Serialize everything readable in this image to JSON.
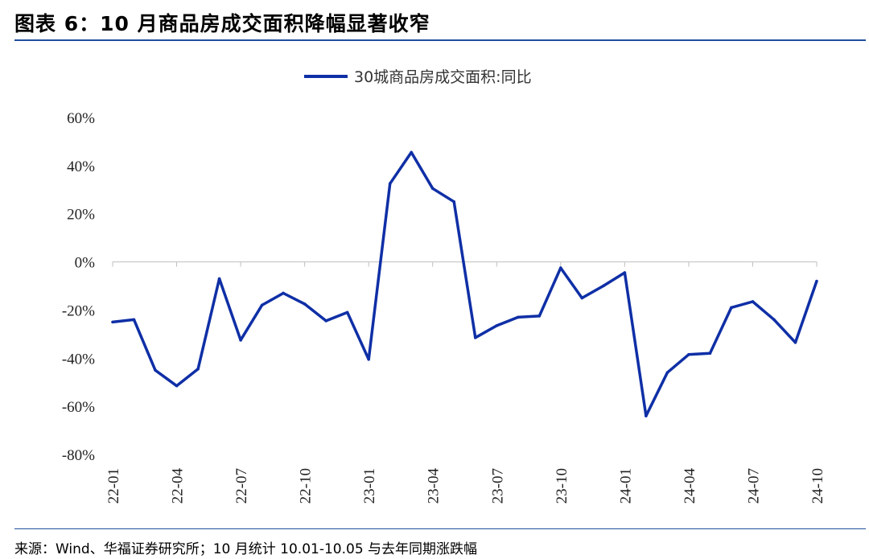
{
  "header": {
    "title": "图表 6：10 月商品房成交面积降幅显著收窄"
  },
  "footer": {
    "source": "来源：Wind、华福证券研究所；10 月统计 10.01-10.05 与去年同期涨跌幅"
  },
  "colors": {
    "accent": "#1f4e9c",
    "series": "#0f2fa6"
  },
  "chart_data": {
    "type": "line",
    "legend": "top-center",
    "grid": false,
    "series": [
      {
        "name": "30城商品房成交面积:同比",
        "values": [
          -25,
          -24,
          -45,
          -51.5,
          -44.5,
          -7,
          -32.5,
          -18,
          -13,
          -17.5,
          -24.5,
          -21,
          -40.5,
          32.5,
          45.5,
          30.5,
          25,
          -31.5,
          -26.5,
          -23,
          -22.5,
          -2.5,
          -15,
          -10,
          -4.5,
          -64,
          -46,
          -38.5,
          -38,
          -19,
          -16.5,
          -24,
          -33.5,
          -8
        ]
      }
    ],
    "x_tick_labels": [
      "22-01",
      "22-04",
      "22-07",
      "22-10",
      "23-01",
      "23-04",
      "23-07",
      "23-10",
      "24-01",
      "24-04",
      "24-07",
      "24-10"
    ],
    "x_tick_every": 3,
    "y_tick_labels": [
      "60%",
      "40%",
      "20%",
      "0%",
      "-20%",
      "-40%",
      "-60%",
      "-80%"
    ],
    "ylim": [
      -80,
      60
    ],
    "ystep": 20
  }
}
